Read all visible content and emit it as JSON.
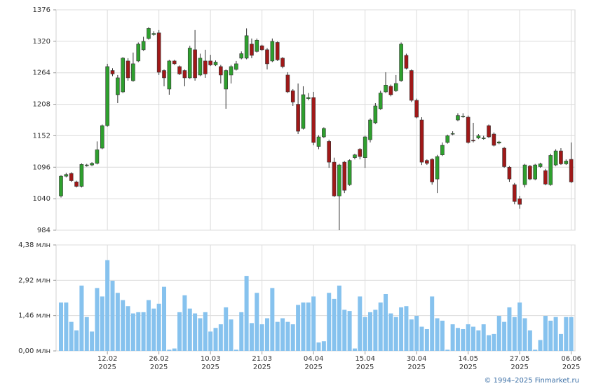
{
  "chart_data": [
    {
      "type": "candlestick",
      "open": [
        1045,
        1080,
        1085,
        1070,
        1062,
        1099,
        1100,
        1103,
        1130,
        1170,
        1268,
        1225,
        1230,
        1285,
        1250,
        1285,
        1305,
        1325,
        1332,
        1335,
        1268,
        1235,
        1285,
        1275,
        1268,
        1255,
        1305,
        1260,
        1285,
        1285,
        1278,
        1275,
        1235,
        1260,
        1270,
        1290,
        1290,
        1315,
        1302,
        1312,
        1305,
        1285,
        1318,
        1290,
        1260,
        1232,
        1208,
        1165,
        1218,
        1220,
        1133,
        1150,
        1142,
        1105,
        1045,
        1105,
        1065,
        1113,
        1128,
        1113,
        1145,
        1175,
        1200,
        1230,
        1240,
        1232,
        1250,
        1295,
        1268,
        1215,
        1180,
        1108,
        1110,
        1075,
        1118,
        1140,
        1155,
        1180,
        1186,
        1185,
        1144,
        1148,
        1147,
        1170,
        1155,
        1139,
        1130,
        1096,
        1065,
        1040,
        1065,
        1098,
        1075,
        1097,
        1090,
        1065,
        1100,
        1125,
        1102,
        1110
      ],
      "high": [
        1082,
        1086,
        1087,
        1072,
        1103,
        1102,
        1105,
        1142,
        1172,
        1280,
        1272,
        1260,
        1292,
        1290,
        1300,
        1318,
        1328,
        1345,
        1338,
        1340,
        1270,
        1287,
        1287,
        1277,
        1270,
        1312,
        1340,
        1298,
        1305,
        1296,
        1286,
        1278,
        1270,
        1278,
        1285,
        1302,
        1343,
        1325,
        1325,
        1314,
        1308,
        1325,
        1320,
        1292,
        1265,
        1235,
        1245,
        1240,
        1228,
        1230,
        1153,
        1167,
        1145,
        1113,
        1102,
        1107,
        1110,
        1120,
        1130,
        1152,
        1183,
        1210,
        1232,
        1265,
        1243,
        1260,
        1318,
        1298,
        1270,
        1218,
        1185,
        1110,
        1112,
        1118,
        1140,
        1154,
        1160,
        1192,
        1192,
        1188,
        1175,
        1155,
        1152,
        1172,
        1158,
        1143,
        1132,
        1098,
        1068,
        1045,
        1102,
        1100,
        1102,
        1104,
        1093,
        1120,
        1128,
        1130,
        1110,
        1140
      ],
      "low": [
        1042,
        1078,
        1070,
        1060,
        1060,
        1097,
        1098,
        1101,
        1128,
        1168,
        1258,
        1210,
        1228,
        1250,
        1248,
        1283,
        1303,
        1323,
        1330,
        1260,
        1240,
        1225,
        1278,
        1260,
        1240,
        1253,
        1250,
        1258,
        1255,
        1276,
        1276,
        1245,
        1200,
        1245,
        1268,
        1288,
        1288,
        1290,
        1300,
        1303,
        1270,
        1283,
        1285,
        1272,
        1228,
        1205,
        1155,
        1163,
        1215,
        1135,
        1128,
        1148,
        1095,
        1043,
        984,
        1050,
        1063,
        1110,
        1110,
        1095,
        1140,
        1173,
        1198,
        1228,
        1222,
        1230,
        1248,
        1270,
        1212,
        1183,
        1100,
        1100,
        1065,
        1050,
        1116,
        1138,
        1153,
        1178,
        1184,
        1138,
        1140,
        1146,
        1145,
        1148,
        1133,
        1137,
        1095,
        1070,
        1030,
        1022,
        1060,
        1073,
        1073,
        1095,
        1064,
        1063,
        1098,
        1100,
        1100,
        1068
      ],
      "close": [
        1080,
        1083,
        1072,
        1062,
        1101,
        1100,
        1103,
        1127,
        1170,
        1275,
        1262,
        1255,
        1290,
        1255,
        1280,
        1315,
        1320,
        1343,
        1334,
        1265,
        1255,
        1285,
        1280,
        1262,
        1255,
        1308,
        1255,
        1290,
        1262,
        1278,
        1283,
        1260,
        1268,
        1275,
        1280,
        1298,
        1330,
        1295,
        1322,
        1305,
        1280,
        1320,
        1287,
        1275,
        1230,
        1212,
        1160,
        1225,
        1220,
        1140,
        1150,
        1165,
        1105,
        1045,
        1100,
        1055,
        1108,
        1118,
        1115,
        1150,
        1180,
        1205,
        1228,
        1242,
        1225,
        1245,
        1315,
        1272,
        1215,
        1185,
        1105,
        1103,
        1070,
        1115,
        1135,
        1152,
        1156,
        1188,
        1187,
        1140,
        1143,
        1152,
        1148,
        1150,
        1135,
        1141,
        1097,
        1075,
        1035,
        1030,
        1100,
        1075,
        1100,
        1102,
        1066,
        1117,
        1125,
        1102,
        1107,
        1070
      ],
      "up_color": "#2ea02e",
      "down_color": "#a01818",
      "ylim": [
        984,
        1376
      ],
      "yticks": [
        984,
        1040,
        1096,
        1152,
        1208,
        1264,
        1320,
        1376
      ],
      "grid": true
    },
    {
      "type": "bar",
      "categories": [
        null,
        null,
        null,
        null,
        null,
        null,
        null,
        null,
        null,
        "12.02\n2025",
        null,
        null,
        null,
        null,
        null,
        null,
        null,
        null,
        null,
        "26.02\n2025",
        null,
        null,
        null,
        null,
        null,
        null,
        null,
        null,
        null,
        "10.03\n2025",
        null,
        null,
        null,
        null,
        null,
        null,
        null,
        null,
        null,
        "21.03\n2025",
        null,
        null,
        null,
        null,
        null,
        null,
        null,
        null,
        null,
        "04.04\n2025",
        null,
        null,
        null,
        null,
        null,
        null,
        null,
        null,
        null,
        "15.04\n2025",
        null,
        null,
        null,
        null,
        null,
        null,
        null,
        null,
        null,
        "30.04\n2025",
        null,
        null,
        null,
        null,
        null,
        null,
        null,
        null,
        null,
        "14.05\n2025",
        null,
        null,
        null,
        null,
        null,
        null,
        null,
        null,
        null,
        "27.05\n2025",
        null,
        null,
        null,
        null,
        null,
        null,
        null,
        null,
        null,
        "06.06\n2025"
      ],
      "values": [
        2.0,
        2.0,
        1.2,
        0.85,
        2.7,
        1.4,
        0.8,
        2.6,
        2.25,
        3.75,
        2.9,
        2.4,
        2.1,
        1.85,
        1.55,
        1.6,
        1.6,
        2.1,
        1.75,
        1.95,
        2.65,
        0.05,
        0.1,
        1.6,
        2.3,
        1.75,
        1.55,
        1.35,
        1.6,
        0.8,
        0.95,
        1.1,
        1.8,
        1.3,
        0.05,
        1.6,
        3.1,
        1.15,
        2.4,
        1.1,
        1.35,
        2.6,
        1.2,
        1.35,
        1.2,
        1.1,
        1.9,
        2.0,
        2.0,
        2.25,
        0.35,
        0.4,
        2.4,
        2.15,
        2.7,
        1.7,
        1.65,
        0.1,
        2.25,
        1.4,
        1.6,
        1.7,
        2.0,
        2.35,
        1.55,
        1.4,
        1.8,
        1.85,
        1.3,
        1.45,
        1.0,
        0.9,
        2.25,
        1.35,
        1.25,
        0.05,
        1.1,
        0.95,
        0.9,
        1.1,
        1.0,
        0.85,
        1.1,
        0.65,
        0.7,
        1.45,
        1.2,
        1.8,
        1.4,
        2.0,
        1.35,
        0.85,
        0.05,
        0.45,
        1.45,
        1.25,
        1.4,
        0.7,
        1.4,
        1.4
      ],
      "color": "#86c2ee",
      "ylim": [
        0,
        4.38
      ],
      "yticks": [
        {
          "value": 0,
          "label": "0,00 млн"
        },
        {
          "value": 1.46,
          "label": "1,46 млн"
        },
        {
          "value": 2.92,
          "label": "2,92 млн"
        },
        {
          "value": 4.38,
          "label": "4,38 млн"
        }
      ],
      "grid": true,
      "footer": "© 1994–2025 Finmarket.ru"
    }
  ]
}
